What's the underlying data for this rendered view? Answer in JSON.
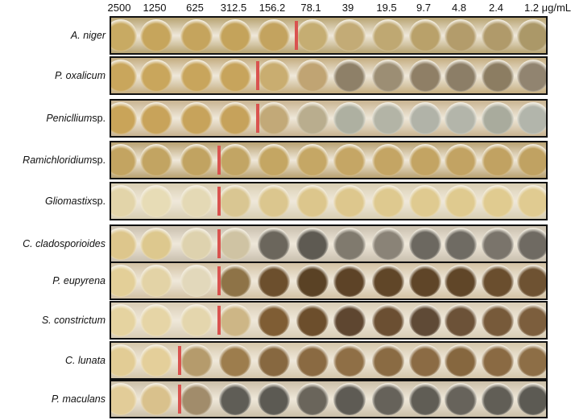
{
  "concentrations": [
    "2500",
    "1250",
    "625",
    "312.5",
    "156.2",
    "78.1",
    "39",
    "19.5",
    "9.7",
    "4.8",
    "2.4",
    "1.2 μg/mL"
  ],
  "rows": [
    {
      "genus": "A. niger",
      "suffix": "",
      "mic_index": 5,
      "plate": "#b8a472",
      "wells": [
        "#c8aa63",
        "#c6a55c",
        "#c5a45d",
        "#c4a35b",
        "#c3a35f",
        "#c5ad72",
        "#c3ab76",
        "#bfa872",
        "#b9a16a",
        "#b39c6b",
        "#b09a6a",
        "#ab9868"
      ]
    },
    {
      "genus": "P. oxalicum",
      "suffix": "",
      "mic_index": 4,
      "plate": "#c4ad80",
      "wells": [
        "#c9a65c",
        "#c9a65c",
        "#c8a55c",
        "#c7a45c",
        "#c9ad70",
        "#c0a473",
        "#8e8068",
        "#9c8e74",
        "#8f7f66",
        "#8c7e67",
        "#8c7d62",
        "#918470"
      ]
    },
    {
      "genus": "Penicllium",
      "suffix": " sp.",
      "mic_index": 4,
      "plate": "#c9b491",
      "wells": [
        "#c9a459",
        "#c8a35a",
        "#c7a35b",
        "#c6a25b",
        "#c2a978",
        "#b9ad8e",
        "#aeb0a1",
        "#b3b4a6",
        "#b1b3a8",
        "#b3b5aa",
        "#a9ab9d",
        "#b2b5ab"
      ]
    },
    {
      "genus": "Ramichloridium",
      "suffix": " sp.",
      "mic_index": 3,
      "plate": "#b9a272",
      "wells": [
        "#c3a461",
        "#c2a462",
        "#c1a361",
        "#c2a564",
        "#c4a663",
        "#c5a765",
        "#c5a665",
        "#c4a564",
        "#c3a463",
        "#c2a363",
        "#c1a262",
        "#c0a262"
      ]
    },
    {
      "genus": "Gliomastix",
      "suffix": " sp.",
      "mic_index": 3,
      "plate": "#d9cfb3",
      "wells": [
        "#e2d4a9",
        "#e7dcb6",
        "#e4d9b5",
        "#d9c692",
        "#dbc68e",
        "#dcc68c",
        "#ddc78d",
        "#dec98f",
        "#dfca90",
        "#dfca8f",
        "#e0cb90",
        "#e0cb91"
      ]
    },
    {
      "genus": "C. cladosporioides",
      "suffix": "",
      "mic_index": 3,
      "plate": "#c9bfae",
      "wells": [
        "#ddc68c",
        "#ddc88e",
        "#ded2ae",
        "#cfc3a3",
        "#6b665c",
        "#5e5a52",
        "#807a6e",
        "#8a8377",
        "#6c6860",
        "#6f6b63",
        "#7a746b",
        "#6f6a62"
      ]
    },
    {
      "genus": "P. eupyrena",
      "suffix": "",
      "mic_index": 3,
      "plate": "#d3c2a4",
      "wells": [
        "#e3cf98",
        "#e3d3a6",
        "#e2d8bb",
        "#8e7347",
        "#6c4f2d",
        "#5a4225",
        "#5d4327",
        "#604628",
        "#5f4528",
        "#604628",
        "#6a4e2e",
        "#6e5232"
      ]
    },
    {
      "genus": "S. constrictum",
      "suffix": "",
      "mic_index": 3,
      "plate": "#d9cdb5",
      "wells": [
        "#e5d3a0",
        "#e6d5a6",
        "#e4d6ad",
        "#cdb686",
        "#7f5d34",
        "#6c4e2c",
        "#5e4630",
        "#6b4f32",
        "#5f4a36",
        "#6c5238",
        "#775a3a",
        "#7c5e3d"
      ]
    },
    {
      "genus": "C. lunata",
      "suffix": "",
      "mic_index": 2,
      "plate": "#d5c7ab",
      "wells": [
        "#e2cc95",
        "#e4cf9a",
        "#b59b6c",
        "#9d7d4d",
        "#876840",
        "#8a6a42",
        "#8f6f46",
        "#8a6b43",
        "#8b6b44",
        "#86673f",
        "#8a6a43",
        "#8d6e46"
      ]
    },
    {
      "genus": "P. maculans",
      "suffix": "",
      "mic_index": 2,
      "plate": "#cbbfa8",
      "wells": [
        "#e2cc98",
        "#d9c18c",
        "#a18c6b",
        "#5f5d56",
        "#5c5a53",
        "#6a655b",
        "#5e5b54",
        "#66625a",
        "#605d55",
        "#67635b",
        "#615e56",
        "#5c5a53"
      ]
    }
  ]
}
